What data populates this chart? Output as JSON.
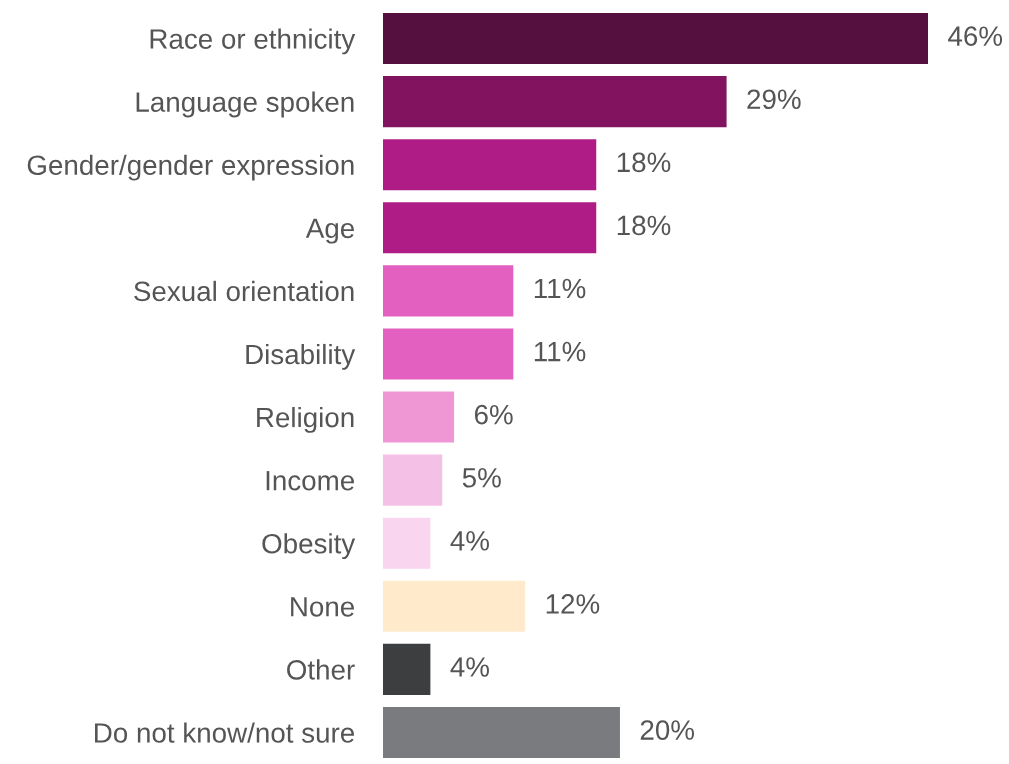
{
  "chart_data": {
    "type": "bar",
    "orientation": "horizontal",
    "data_labels": true,
    "categories": [
      "Race or ethnicity",
      "Language spoken",
      "Gender/gender expression",
      "Age",
      "Sexual orientation",
      "Disability",
      "Religion",
      "Income",
      "Obesity",
      "None",
      "Other",
      "Do not know/not sure"
    ],
    "values": [
      46,
      29,
      18,
      18,
      11,
      11,
      6,
      5,
      4,
      12,
      4,
      20
    ],
    "value_labels": [
      "46%",
      "29%",
      "18%",
      "18%",
      "11%",
      "11%",
      "6%",
      "5%",
      "4%",
      "12%",
      "4%",
      "20%"
    ],
    "colors": [
      "#561040",
      "#82145f",
      "#b01c85",
      "#b01c85",
      "#e35fc0",
      "#e35fc0",
      "#ef97d4",
      "#f5c0e6",
      "#f9d5ef",
      "#ffeacc",
      "#3d3e40",
      "#7a7b7f"
    ],
    "grid": false,
    "legend": false
  }
}
